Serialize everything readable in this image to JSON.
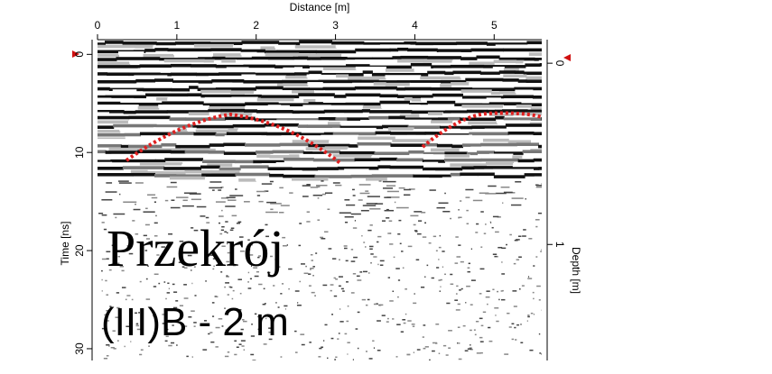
{
  "chart_data": {
    "type": "radargram",
    "xlabel": "Distance [m]",
    "ylabel": "Time [ns]",
    "y2label": "Depth [m]",
    "xlim": [
      0,
      5.6
    ],
    "xticks": [
      0,
      1,
      2,
      3,
      4,
      5
    ],
    "ylim": [
      -1.5,
      31.2
    ],
    "yticks": [
      0,
      10,
      20,
      30
    ],
    "y2lim": [
      -0.13,
      1.64
    ],
    "y2ticks": [
      0,
      1
    ],
    "annotations": [
      "Przekrój",
      "(III)B - 2 m"
    ]
  }
}
